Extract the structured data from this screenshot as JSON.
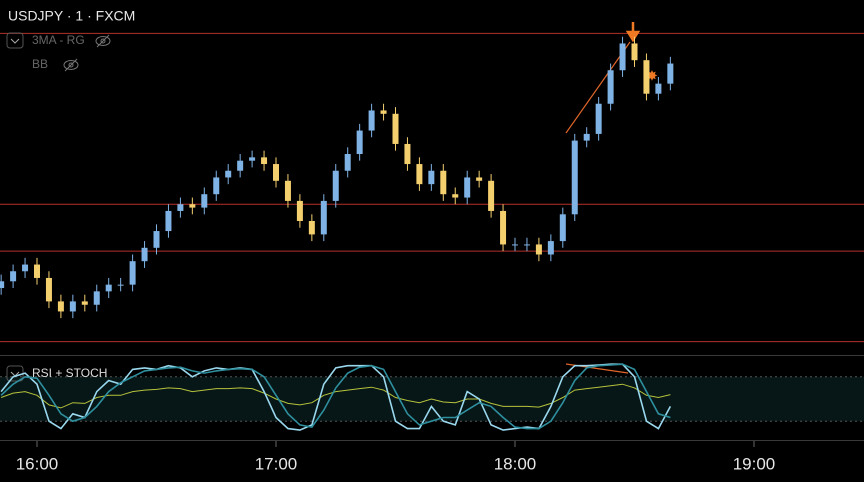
{
  "chart_data": [
    {
      "type": "candlestick",
      "title": "USDJPY · 1 · FXCM",
      "indicators": [
        "3MA - RG",
        "BB"
      ],
      "x": [
        "15:51",
        "15:54",
        "15:57",
        "16:00",
        "16:03",
        "16:06",
        "16:09",
        "16:12",
        "16:15",
        "16:18",
        "16:21",
        "16:24",
        "16:27",
        "16:30",
        "16:33",
        "16:36",
        "16:39",
        "16:42",
        "16:45",
        "16:48",
        "16:51",
        "16:54",
        "16:57",
        "17:00",
        "17:03",
        "17:06",
        "17:09",
        "17:12",
        "17:15",
        "17:18",
        "17:21",
        "17:24",
        "17:27",
        "17:30",
        "17:33",
        "17:36",
        "17:39",
        "17:42",
        "17:45",
        "17:48",
        "17:51",
        "17:54",
        "17:57",
        "18:00",
        "18:03",
        "18:06",
        "18:09",
        "18:12",
        "18:15",
        "18:18",
        "18:21",
        "18:24",
        "18:27",
        "18:30",
        "18:33",
        "18:36",
        "18:39"
      ],
      "open": [
        20,
        22,
        25,
        27,
        23,
        16,
        13,
        16,
        15,
        19,
        21,
        21,
        28,
        32,
        37,
        43,
        45,
        44,
        48,
        53,
        55,
        58,
        59,
        57,
        52,
        46,
        40,
        36,
        46,
        55,
        60,
        67,
        73,
        72,
        63,
        57,
        51,
        55,
        48,
        47,
        53,
        52,
        43,
        33,
        33,
        33,
        30,
        34,
        42,
        64,
        66,
        75,
        85,
        93,
        88,
        78,
        81
      ],
      "high": [
        24,
        27,
        29,
        29,
        25,
        18,
        18,
        18,
        21,
        23,
        23,
        30,
        34,
        39,
        45,
        47,
        47,
        50,
        55,
        57,
        60,
        61,
        61,
        59,
        54,
        48,
        42,
        48,
        57,
        62,
        69,
        75,
        75,
        74,
        65,
        59,
        57,
        57,
        50,
        55,
        55,
        54,
        45,
        35,
        35,
        35,
        36,
        44,
        66,
        68,
        77,
        87,
        95,
        95,
        90,
        83,
        89
      ],
      "low": [
        18,
        20,
        23,
        21,
        14,
        11,
        11,
        13,
        13,
        17,
        19,
        19,
        26,
        30,
        35,
        41,
        42,
        42,
        46,
        51,
        53,
        56,
        55,
        50,
        44,
        38,
        34,
        34,
        44,
        53,
        58,
        65,
        70,
        61,
        55,
        49,
        49,
        46,
        45,
        45,
        50,
        41,
        31,
        31,
        31,
        28,
        28,
        32,
        40,
        62,
        64,
        73,
        83,
        86,
        76,
        76,
        79
      ],
      "close": [
        22,
        25,
        27,
        23,
        16,
        13,
        16,
        15,
        19,
        21,
        21,
        28,
        32,
        37,
        43,
        45,
        44,
        48,
        53,
        55,
        58,
        59,
        57,
        52,
        46,
        40,
        36,
        46,
        55,
        60,
        67,
        73,
        72,
        63,
        57,
        51,
        55,
        48,
        47,
        53,
        52,
        43,
        33,
        33,
        33,
        30,
        34,
        42,
        64,
        66,
        75,
        85,
        93,
        88,
        78,
        81,
        87
      ],
      "up_color": "#7fb3e6",
      "down_color": "#f3cf6e",
      "ylim": [
        0,
        100
      ],
      "hlines": [
        96,
        45,
        31,
        4
      ],
      "hline_color": "#b4312b",
      "xticks": [
        "16:00",
        "17:00",
        "18:00",
        "19:00"
      ]
    },
    {
      "type": "line",
      "title": "RSI + STOCH",
      "ylim": [
        0,
        100
      ],
      "bands": [
        20,
        80
      ],
      "series": [
        {
          "color": "#b6c33c",
          "values": [
            52,
            58,
            60,
            55,
            42,
            38,
            45,
            44,
            52,
            55,
            55,
            60,
            62,
            63,
            65,
            64,
            60,
            62,
            64,
            64,
            65,
            64,
            58,
            50,
            44,
            42,
            45,
            55,
            60,
            62,
            64,
            66,
            62,
            52,
            48,
            45,
            50,
            46,
            45,
            50,
            50,
            44,
            40,
            40,
            40,
            39,
            44,
            52,
            62,
            64,
            66,
            68,
            70,
            65,
            55,
            52,
            56
          ]
        },
        {
          "color": "#9ad8ee",
          "values": [
            60,
            80,
            85,
            70,
            20,
            10,
            30,
            25,
            60,
            75,
            70,
            90,
            92,
            90,
            95,
            92,
            80,
            88,
            92,
            90,
            92,
            90,
            60,
            25,
            10,
            8,
            15,
            70,
            92,
            95,
            95,
            95,
            80,
            20,
            10,
            10,
            40,
            20,
            15,
            60,
            50,
            15,
            8,
            10,
            12,
            10,
            40,
            80,
            95,
            95,
            96,
            97,
            97,
            80,
            20,
            10,
            40
          ]
        },
        {
          "color": "#2e8f9e",
          "values": [
            55,
            70,
            80,
            78,
            55,
            30,
            20,
            25,
            40,
            60,
            72,
            80,
            88,
            90,
            92,
            93,
            88,
            85,
            88,
            90,
            91,
            90,
            80,
            55,
            30,
            15,
            12,
            35,
            65,
            85,
            93,
            95,
            90,
            60,
            30,
            15,
            20,
            25,
            25,
            35,
            45,
            40,
            25,
            12,
            10,
            10,
            20,
            45,
            75,
            92,
            95,
            96,
            97,
            90,
            60,
            30,
            25
          ]
        }
      ]
    }
  ]
}
